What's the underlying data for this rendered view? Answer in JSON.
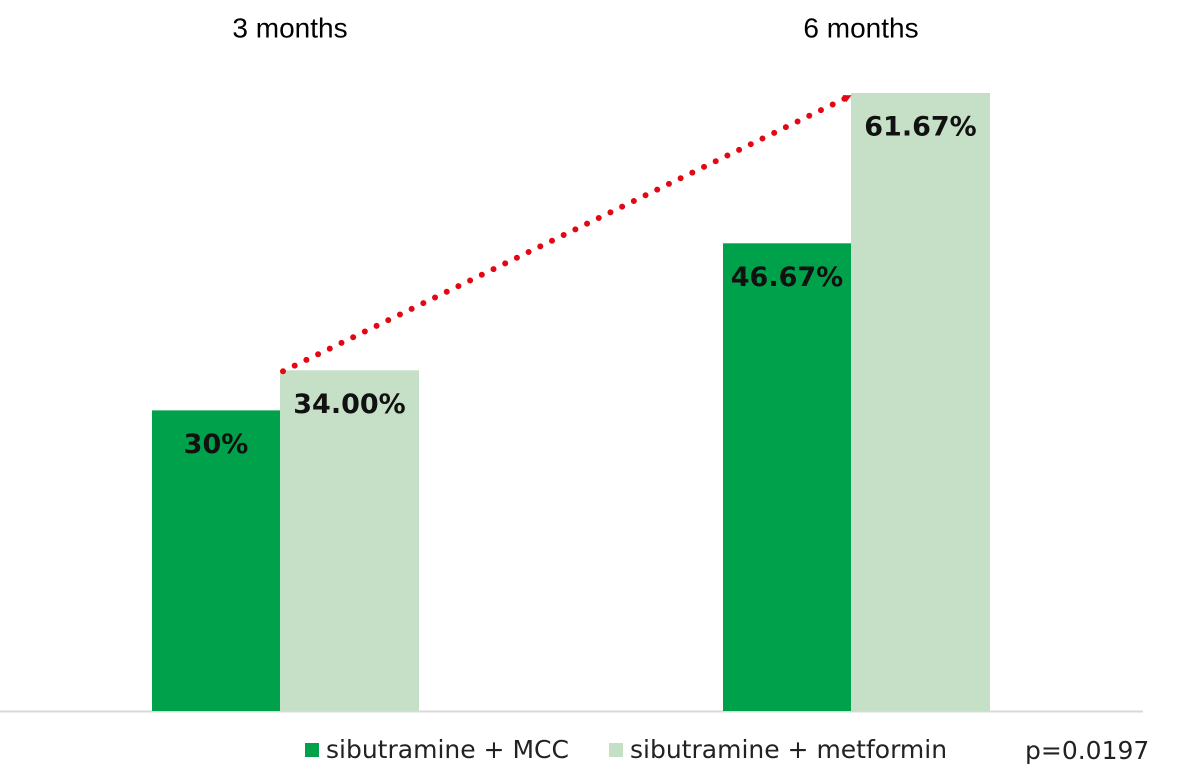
{
  "chart_data": {
    "type": "bar",
    "categories": [
      "3 months",
      "6 months"
    ],
    "series": [
      {
        "name": "sibutramine + MCC",
        "color": "#00a14b",
        "values": [
          30,
          46.67
        ],
        "value_labels": [
          "30%",
          "46.67%"
        ]
      },
      {
        "name": "sibutramine + metformin",
        "color": "#c5e0c7",
        "values": [
          34,
          61.67
        ],
        "value_labels": [
          "34.00%",
          "61.67%"
        ]
      }
    ],
    "annotation": "p=0.0197",
    "arrow_color": "#e30613"
  }
}
